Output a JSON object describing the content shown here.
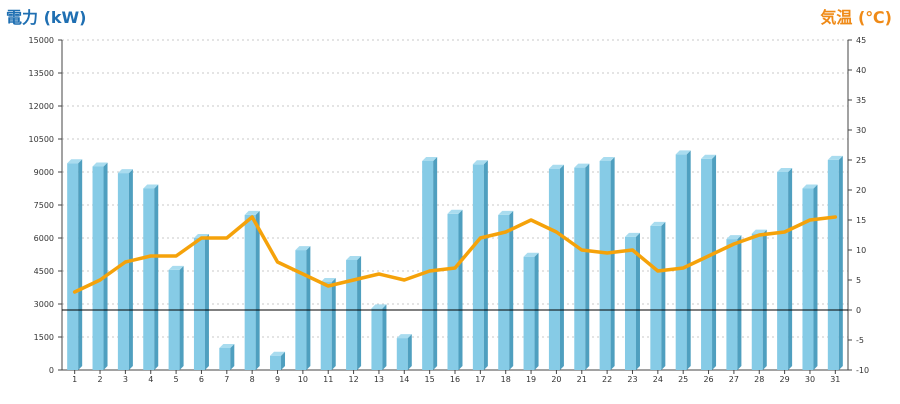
{
  "chart_data": {
    "type": "bar+line",
    "left_axis_title": "電力 (kW)",
    "right_axis_title": "気温 (℃)",
    "categories": [
      "1",
      "2",
      "3",
      "4",
      "5",
      "6",
      "7",
      "8",
      "9",
      "10",
      "11",
      "12",
      "13",
      "14",
      "15",
      "16",
      "17",
      "18",
      "19",
      "20",
      "21",
      "22",
      "23",
      "24",
      "25",
      "26",
      "27",
      "28",
      "29",
      "30",
      "31"
    ],
    "left_axis": {
      "min": 0,
      "max": 15000,
      "ticks": [
        "0",
        "1500",
        "3000",
        "4500",
        "6000",
        "7500",
        "9000",
        "10500",
        "12000",
        "13500",
        "15000"
      ]
    },
    "right_axis": {
      "min": -10,
      "max": 45,
      "ticks": [
        "-10",
        "-5",
        "0",
        "5",
        "10",
        "15",
        "20",
        "25",
        "30",
        "35",
        "40",
        "45"
      ]
    },
    "grid": "horizontal dashed",
    "series": [
      {
        "type": "bar",
        "axis": "left",
        "color": "#7ec8e3",
        "values": [
          9400,
          9250,
          8950,
          8250,
          4550,
          6000,
          1000,
          7050,
          650,
          5450,
          4000,
          5000,
          2800,
          1450,
          9500,
          7100,
          9350,
          7050,
          5150,
          9150,
          9200,
          9500,
          6050,
          6550,
          9800,
          9600,
          5950,
          6200,
          9000,
          8250,
          9550
        ]
      },
      {
        "type": "line",
        "axis": "right",
        "color": "#f5a20a",
        "values": [
          3,
          5,
          8,
          9,
          9,
          12,
          12,
          15.5,
          8,
          6,
          4,
          5,
          6,
          5,
          6.5,
          7,
          12,
          13,
          15,
          13,
          10,
          9.5,
          10,
          6.5,
          7,
          9,
          11,
          12.5,
          13,
          15,
          15.5
        ]
      }
    ],
    "reference_line": {
      "axis": "right",
      "value": 0,
      "color": "#000000"
    }
  }
}
